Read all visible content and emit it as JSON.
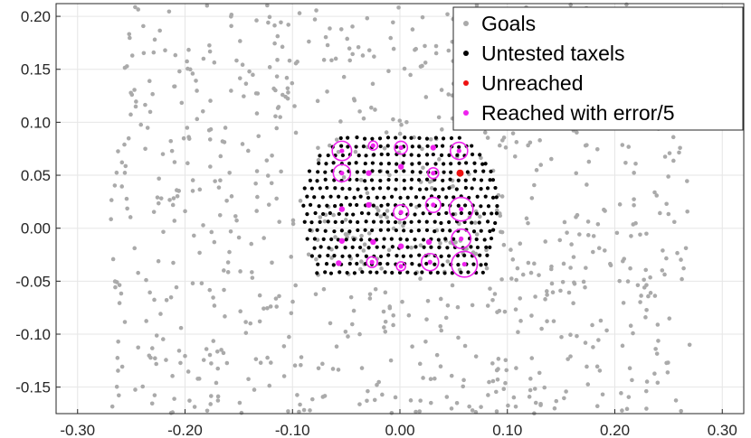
{
  "chart_data": {
    "type": "scatter",
    "title": "",
    "xlabel": "",
    "ylabel": "",
    "xlim": [
      -0.32,
      0.32
    ],
    "ylim": [
      -0.175,
      0.212
    ],
    "xticks": [
      -0.3,
      -0.2,
      -0.1,
      0.0,
      0.1,
      0.2,
      0.3
    ],
    "xtick_labels": [
      "-0.30",
      "-0.20",
      "-0.10",
      "0.00",
      "0.10",
      "0.20",
      "0.30"
    ],
    "yticks": [
      -0.15,
      -0.1,
      -0.05,
      0.0,
      0.05,
      0.1,
      0.15,
      0.2
    ],
    "ytick_labels": [
      "-0.15",
      "-0.10",
      "-0.05",
      "0.00",
      "0.05",
      "0.10",
      "0.15",
      "0.20"
    ],
    "grid": true,
    "legend_position": "top-right",
    "series": [
      {
        "name": "Goals",
        "color": "#aaaaaa",
        "marker": "dot",
        "distribution": "uniform",
        "count": 900,
        "x_range": [
          -0.27,
          0.27
        ],
        "y_range": [
          -0.175,
          0.212
        ]
      },
      {
        "name": "Untested taxels",
        "color": "#000000",
        "marker": "dot",
        "distribution": "dome-grid",
        "x_range": [
          -0.09,
          0.09
        ],
        "y_range": [
          -0.042,
          0.085
        ]
      },
      {
        "name": "Unreached",
        "color": "#ee1111",
        "marker": "dot",
        "points": [
          [
            0.056,
            0.052
          ]
        ]
      },
      {
        "name": "Reached with error/5",
        "color": "#ee22ee",
        "marker": "dot-with-error-circle",
        "points": [
          {
            "x": -0.054,
            "y": 0.073,
            "error": 0.009
          },
          {
            "x": -0.054,
            "y": 0.052,
            "error": 0.008
          },
          {
            "x": -0.025,
            "y": 0.078,
            "error": 0.004
          },
          {
            "x": 0.001,
            "y": 0.076,
            "error": 0.006
          },
          {
            "x": 0.031,
            "y": 0.076,
            "error": 0.0
          },
          {
            "x": 0.055,
            "y": 0.073,
            "error": 0.008
          },
          {
            "x": -0.029,
            "y": 0.052,
            "error": 0.0
          },
          {
            "x": 0.001,
            "y": 0.058,
            "error": 0.0
          },
          {
            "x": 0.031,
            "y": 0.052,
            "error": 0.005
          },
          {
            "x": -0.054,
            "y": 0.018,
            "error": 0.0
          },
          {
            "x": -0.029,
            "y": 0.022,
            "error": 0.0
          },
          {
            "x": 0.001,
            "y": 0.015,
            "error": 0.007
          },
          {
            "x": 0.031,
            "y": 0.022,
            "error": 0.007
          },
          {
            "x": 0.057,
            "y": 0.018,
            "error": 0.011
          },
          {
            "x": -0.054,
            "y": -0.012,
            "error": 0.0
          },
          {
            "x": -0.025,
            "y": -0.013,
            "error": 0.0
          },
          {
            "x": 0.001,
            "y": -0.017,
            "error": 0.0
          },
          {
            "x": 0.027,
            "y": -0.013,
            "error": 0.0
          },
          {
            "x": 0.057,
            "y": -0.01,
            "error": 0.009
          },
          {
            "x": -0.057,
            "y": -0.033,
            "error": 0.0
          },
          {
            "x": -0.026,
            "y": -0.032,
            "error": 0.005
          },
          {
            "x": 0.001,
            "y": -0.036,
            "error": 0.004
          },
          {
            "x": 0.028,
            "y": -0.032,
            "error": 0.008
          },
          {
            "x": 0.06,
            "y": -0.034,
            "error": 0.012
          }
        ]
      }
    ]
  }
}
